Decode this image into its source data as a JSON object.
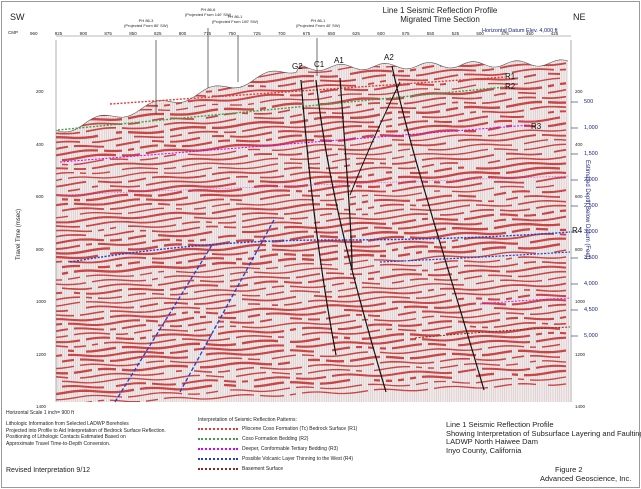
{
  "header": {
    "direction_left": "SW",
    "direction_right": "NE",
    "title_line1": "Line 1 Seismic Reflection Profile",
    "title_line2": "Migrated Time Section",
    "cmp_label": "CMP",
    "datum": "Horizontal Datum Elev. 4,000 ft",
    "cmp_ticks": [
      "960",
      "925",
      "900",
      "875",
      "850",
      "825",
      "800",
      "775",
      "750",
      "725",
      "700",
      "675",
      "650",
      "625",
      "600",
      "575",
      "550",
      "525",
      "500",
      "475",
      "450",
      "425"
    ]
  },
  "boreholes": [
    {
      "name": "PH 86-3",
      "note": "(Projected From 80' SW)"
    },
    {
      "name": "PH 86-6",
      "note": "(Projected From 140' SW)"
    },
    {
      "name": "PH 86-1",
      "note": "(Projected From 100' SW)"
    },
    {
      "name": "PH 86-1",
      "note": "(Projected From 40' SW)"
    }
  ],
  "faults": [
    "G2",
    "C1",
    "A1",
    "A2"
  ],
  "horizons": [
    "R1",
    "R2",
    "R3",
    "R4"
  ],
  "axes": {
    "left_label": "Travel Time (msec)",
    "right_label": "Estimated Depth Below Datum (Feet)",
    "time_ticks": [
      "200",
      "400",
      "600",
      "800",
      "1000",
      "1200",
      "1400"
    ],
    "depth_ticks": [
      "500",
      "1,000",
      "1,500",
      "2,000",
      "2,500",
      "3,000",
      "3,500",
      "4,000",
      "4,500",
      "5,000"
    ],
    "right_time_ticks": [
      "200",
      "400",
      "600",
      "800",
      "1000",
      "1200",
      "1400"
    ]
  },
  "footer": {
    "scale": "Horizontal Scale 1 inch= 900 ft",
    "notes": [
      "Lithologic Information from Selected LADWP Boreholes",
      "Projected into Profile to Aid Interpretation of Bedrock Surface Reflection.",
      "Positioning of Lithologic Contacts Estimated Based on",
      "Approximate Travel Time-to-Depth Conversion."
    ],
    "revised": "Revised Interpretation 9/12",
    "legend_title": "Interpretation of Seismic Reflection Patterns:",
    "legend": [
      {
        "label": "Pliocene Coso Formation (Tc) Bedrock Surface (R1)",
        "color": "#e53935"
      },
      {
        "label": "Coso Formation Bedding (R2)",
        "color": "#43a047"
      },
      {
        "label": "Deeper, Conformable Tertiary Bedding (R3)",
        "color": "#d500f9"
      },
      {
        "label": "Possible Volcanic Layer Thinning to the West (R4)",
        "color": "#1e3fcf"
      },
      {
        "label": "Basement Surface",
        "color": "#8b2a1a"
      }
    ],
    "right_title": [
      "Line 1 Seismic Reflection Profile",
      "Showing Interpretation of Subsurface Layering and Faulting",
      "LADWP North Haiwee Dam",
      "Inyo County, California"
    ],
    "figure": "Figure 2",
    "company": "Advanced Geoscience, Inc."
  }
}
